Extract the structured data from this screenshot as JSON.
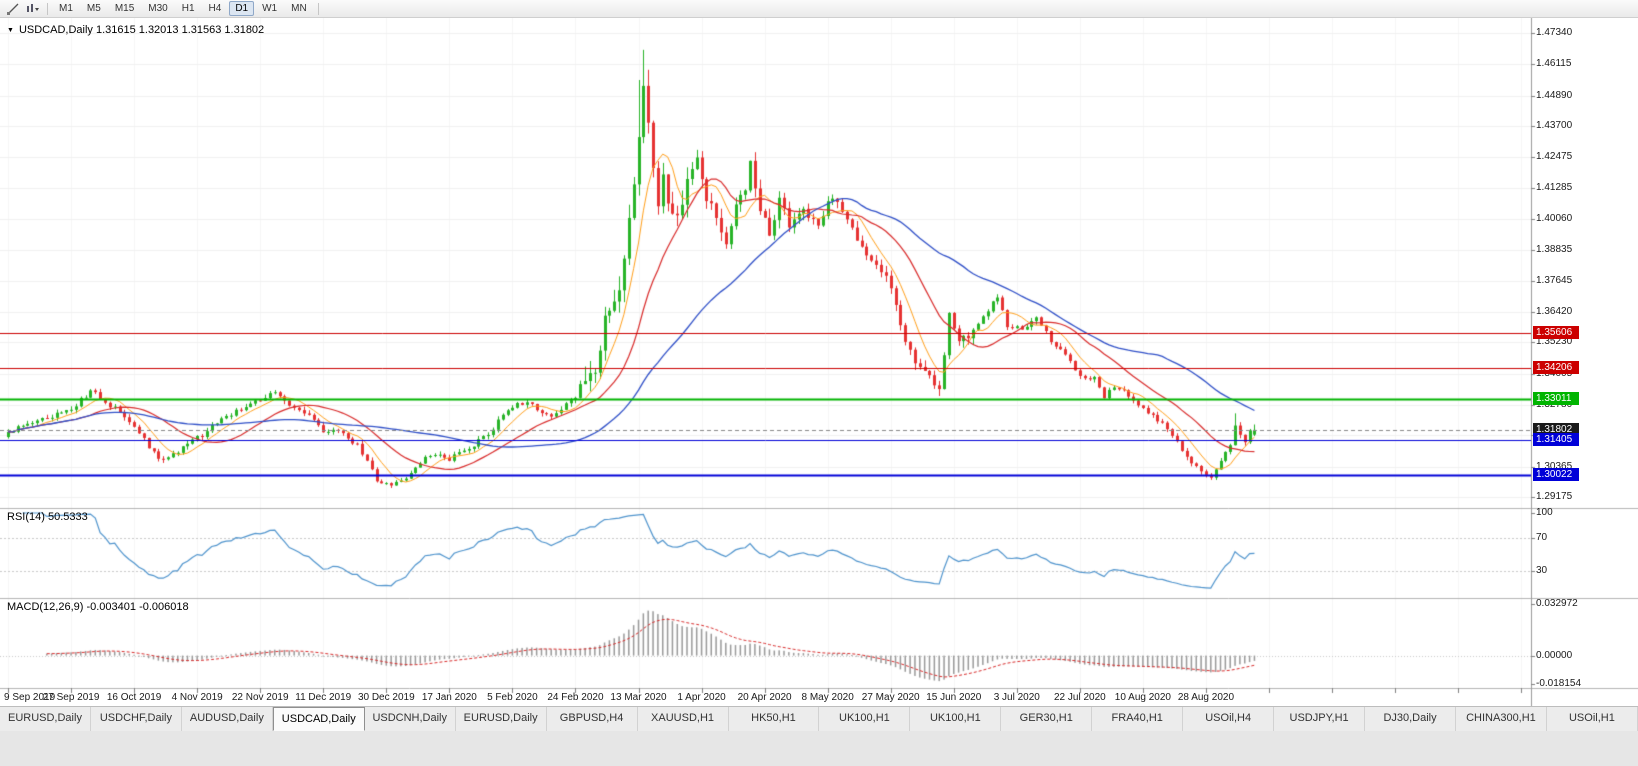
{
  "toolbar": {
    "timeframes": [
      "M1",
      "M5",
      "M15",
      "M30",
      "H1",
      "H4",
      "D1",
      "W1",
      "MN"
    ],
    "active_timeframe": "D1"
  },
  "chart": {
    "header": "USDCAD,Daily 1.31615 1.32013 1.31563 1.31802",
    "symbol": "USDCAD",
    "period": "Daily",
    "open": "1.31615",
    "high": "1.32013",
    "low": "1.31563",
    "close": "1.31802"
  },
  "price_scale": [
    "1.47340",
    "1.46115",
    "1.44890",
    "1.43700",
    "1.42475",
    "1.41285",
    "1.40060",
    "1.38835",
    "1.37645",
    "1.36420",
    "1.35230",
    "1.34005",
    "1.32780",
    "1.31590",
    "1.30365",
    "1.29175"
  ],
  "hlines": [
    {
      "price": 1.35606,
      "label": "1.35606",
      "color": "#cc0000",
      "width": 1,
      "type": "resistance"
    },
    {
      "price": 1.34206,
      "label": "1.34206",
      "color": "#cc0000",
      "width": 1,
      "type": "resistance"
    },
    {
      "price": 1.33011,
      "label": "1.33011",
      "color": "#00b400",
      "width": 2,
      "type": "level"
    },
    {
      "price": 1.31802,
      "label": "1.31802",
      "color": "#1a1a1a",
      "width": 1,
      "type": "current-price"
    },
    {
      "price": 1.31405,
      "label": "1.31405",
      "color": "#0000d8",
      "width": 1,
      "type": "support"
    },
    {
      "price": 1.30022,
      "label": "1.30022",
      "color": "#0000d8",
      "width": 2,
      "type": "support"
    }
  ],
  "rsi_panel": {
    "label": "RSI(14) 50.5333",
    "name": "RSI(14)",
    "value": "50.5333",
    "scale": [
      "100",
      "70",
      "30"
    ],
    "scale_values": [
      100,
      70,
      30
    ],
    "levels": [
      70,
      30
    ],
    "line_color": "#4f94cd"
  },
  "macd_panel": {
    "label": "MACD(12,26,9) -0.003401 -0.006018",
    "name": "MACD(12,26,9)",
    "macd_value": "-0.003401",
    "signal_value": "-0.006018",
    "scale": [
      "0.032972",
      "0.00000",
      "-0.018154"
    ],
    "scale_values": [
      0.032972,
      0,
      -0.018154
    ],
    "histogram_color": "#9a9a9a",
    "signal_color": "#d92b2b"
  },
  "x_axis_dates": [
    "9 Sep 2019",
    "27 Sep 2019",
    "16 Oct 2019",
    "4 Nov 2019",
    "22 Nov 2019",
    "11 Dec 2019",
    "30 Dec 2019",
    "17 Jan 2020",
    "5 Feb 2020",
    "24 Feb 2020",
    "13 Mar 2020",
    "1 Apr 2020",
    "20 Apr 2020",
    "8 May 2020",
    "27 May 2020",
    "15 Jun 2020",
    "3 Jul 2020",
    "22 Jul 2020",
    "10 Aug 2020",
    "28 Aug 2020"
  ],
  "tabs": {
    "active_index": 3,
    "items": [
      "EURUSD,Daily",
      "USDCHF,Daily",
      "AUDUSD,Daily",
      "USDCAD,Daily",
      "USDCNH,Daily",
      "EURUSD,Daily",
      "GBPUSD,H4",
      "XAUUSD,H1",
      "HK50,H1",
      "UK100,H1",
      "UK100,H1",
      "GER30,H1",
      "FRA40,H1",
      "USOil,H4",
      "USDJPY,H1",
      "DJ30,Daily",
      "CHINA300,H1",
      "USOil,H1"
    ]
  },
  "colors": {
    "up_candle": "#28b428",
    "down_candle": "#e63232",
    "ma_fast": "#ff9f1a",
    "ma_mid": "#d92b2b",
    "ma_slow": "#3050c8",
    "grid": "#f1f1f1",
    "grid_vertical": "#f6f6f6",
    "panel_border": "#b3b3b3",
    "axis_border": "#9a9a9a",
    "current_price_line": "#888888"
  },
  "chart_data": {
    "type": "candlestick",
    "title": "USDCAD Daily",
    "x_tick_labels": [
      "9 Sep 2019",
      "27 Sep 2019",
      "16 Oct 2019",
      "4 Nov 2019",
      "22 Nov 2019",
      "11 Dec 2019",
      "30 Dec 2019",
      "17 Jan 2020",
      "5 Feb 2020",
      "24 Feb 2020",
      "13 Mar 2020",
      "1 Apr 2020",
      "20 Apr 2020",
      "8 May 2020",
      "27 May 2020",
      "15 Jun 2020",
      "3 Jul 2020",
      "22 Jul 2020",
      "10 Aug 2020",
      "28 Aug 2020"
    ],
    "y_ticks": [
      1.4734,
      1.46115,
      1.4489,
      1.437,
      1.42475,
      1.41285,
      1.4006,
      1.38835,
      1.37645,
      1.3642,
      1.3523,
      1.34005,
      1.3278,
      1.3159,
      1.30365,
      1.29175
    ],
    "y_range": [
      1.29175,
      1.4734
    ],
    "num_candles": 258,
    "bars_per_x_tick": 13,
    "current_price": 1.31802,
    "last_candle": {
      "open": 1.31615,
      "high": 1.32013,
      "low": 1.31563,
      "close": 1.31802
    },
    "peak_index": 131,
    "peak_high": 1.4668,
    "recent_low": 1.2994,
    "recent_low_index": 247,
    "horizontal_levels": [
      1.35606,
      1.34206,
      1.33011,
      1.31405,
      1.30022
    ],
    "indicators": {
      "moving_averages": [
        {
          "period": 7,
          "color": "#ff9f1a"
        },
        {
          "period": 18,
          "color": "#d92b2b"
        },
        {
          "period": 45,
          "color": "#3050c8"
        }
      ],
      "rsi": {
        "period": 14,
        "current": 50.5333,
        "levels": [
          70,
          30
        ]
      },
      "macd": {
        "fast": 12,
        "slow": 26,
        "signal": 9,
        "current_macd": -0.003401,
        "current_signal": -0.006018,
        "scale_max": 0.032972,
        "scale_min": -0.018154
      }
    },
    "anchors": [
      [
        0,
        1.317
      ],
      [
        6,
        1.3215
      ],
      [
        13,
        1.3258
      ],
      [
        17,
        1.3335
      ],
      [
        22,
        1.3262
      ],
      [
        27,
        1.317
      ],
      [
        31,
        1.3062
      ],
      [
        34,
        1.3088
      ],
      [
        39,
        1.3148
      ],
      [
        45,
        1.3232
      ],
      [
        50,
        1.3288
      ],
      [
        55,
        1.3322
      ],
      [
        58,
        1.3282
      ],
      [
        62,
        1.3232
      ],
      [
        65,
        1.3178
      ],
      [
        69,
        1.3168
      ],
      [
        72,
        1.3118
      ],
      [
        76,
        1.2988
      ],
      [
        79,
        1.2962
      ],
      [
        82,
        1.2997
      ],
      [
        85,
        1.3055
      ],
      [
        88,
        1.3088
      ],
      [
        91,
        1.3068
      ],
      [
        95,
        1.3108
      ],
      [
        99,
        1.3162
      ],
      [
        103,
        1.3262
      ],
      [
        107,
        1.3292
      ],
      [
        111,
        1.3232
      ],
      [
        114,
        1.3258
      ],
      [
        117,
        1.3312
      ],
      [
        119,
        1.3398
      ],
      [
        120,
        1.3428
      ],
      [
        121,
        1.3408
      ],
      [
        122,
        1.3465
      ],
      [
        123,
        1.36
      ],
      [
        124,
        1.3662
      ],
      [
        125,
        1.372
      ],
      [
        126,
        1.3758
      ],
      [
        127,
        1.387
      ],
      [
        128,
        1.3975
      ],
      [
        129,
        1.412
      ],
      [
        130,
        1.435
      ],
      [
        131,
        1.456
      ],
      [
        132,
        1.44
      ],
      [
        133,
        1.418
      ],
      [
        134,
        1.4065
      ],
      [
        135,
        1.4185
      ],
      [
        136,
        1.4092
      ],
      [
        138,
        1.3992
      ],
      [
        140,
        1.4162
      ],
      [
        142,
        1.4232
      ],
      [
        144,
        1.4092
      ],
      [
        146,
        1.4012
      ],
      [
        148,
        1.3892
      ],
      [
        150,
        1.4052
      ],
      [
        152,
        1.4122
      ],
      [
        153,
        1.4215
      ],
      [
        155,
        1.4032
      ],
      [
        157,
        1.3942
      ],
      [
        159,
        1.4072
      ],
      [
        161,
        1.3982
      ],
      [
        164,
        1.4042
      ],
      [
        167,
        1.3982
      ],
      [
        170,
        1.4098
      ],
      [
        173,
        1.3992
      ],
      [
        176,
        1.3902
      ],
      [
        179,
        1.3822
      ],
      [
        182,
        1.3745
      ],
      [
        184,
        1.3582
      ],
      [
        186,
        1.3482
      ],
      [
        188,
        1.3422
      ],
      [
        190,
        1.3392
      ],
      [
        192,
        1.3342
      ],
      [
        193,
        1.3482
      ],
      [
        194,
        1.3622
      ],
      [
        196,
        1.3532
      ],
      [
        199,
        1.3562
      ],
      [
        202,
        1.3652
      ],
      [
        204,
        1.3702
      ],
      [
        206,
        1.3592
      ],
      [
        209,
        1.3572
      ],
      [
        212,
        1.3612
      ],
      [
        215,
        1.3532
      ],
      [
        218,
        1.3472
      ],
      [
        220,
        1.3412
      ],
      [
        222,
        1.3382
      ],
      [
        224,
        1.3392
      ],
      [
        226,
        1.3312
      ],
      [
        228,
        1.3352
      ],
      [
        232,
        1.3302
      ],
      [
        235,
        1.3252
      ],
      [
        238,
        1.3202
      ],
      [
        240,
        1.3152
      ],
      [
        242,
        1.3102
      ],
      [
        244,
        1.3052
      ],
      [
        246,
        1.3012
      ],
      [
        248,
        1.3002
      ],
      [
        250,
        1.3062
      ],
      [
        252,
        1.3122
      ],
      [
        253,
        1.3202
      ],
      [
        254,
        1.3152
      ],
      [
        255,
        1.314
      ],
      [
        256,
        1.3186
      ],
      [
        257,
        1.31802
      ]
    ]
  }
}
